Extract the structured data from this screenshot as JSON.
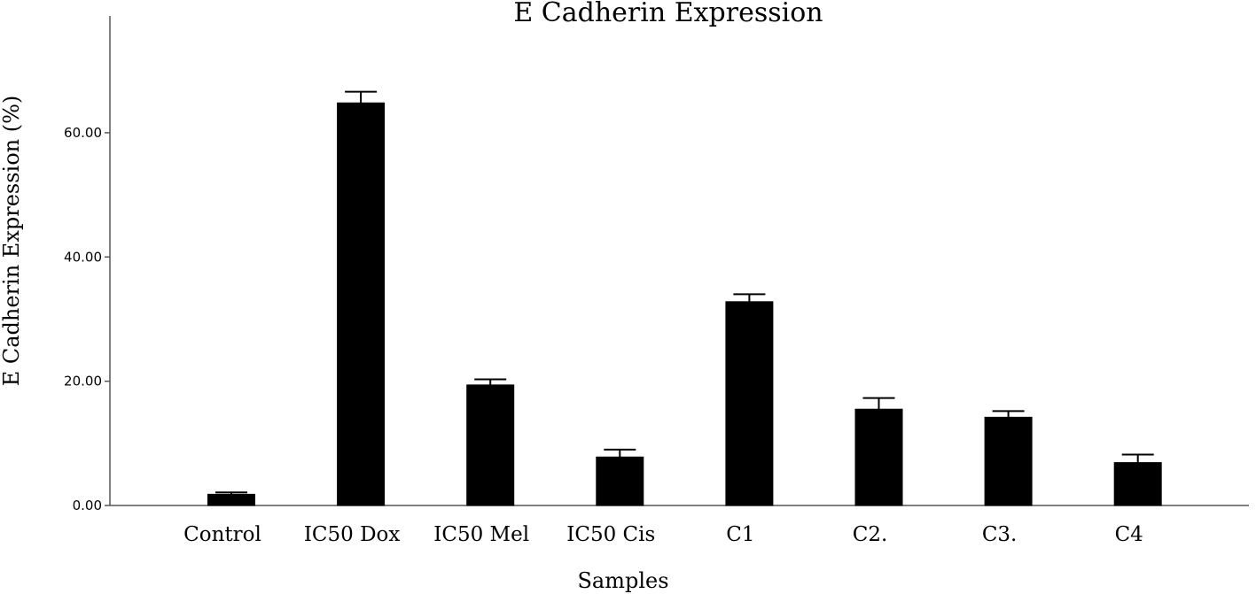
{
  "chart_data": {
    "type": "bar",
    "title": "E Cadherin Expression",
    "xlabel": "Samples",
    "ylabel": "E Cadherin Expression (%)",
    "categories": [
      "Control",
      "IC50 Dox",
      "IC50 Mel",
      "IC50 Cis",
      "C1",
      "C2.",
      "C3.",
      "C4"
    ],
    "values": [
      1.8,
      64.8,
      19.4,
      7.8,
      32.8,
      15.5,
      14.2,
      6.9
    ],
    "error_upper": [
      2.1,
      66.6,
      20.3,
      9.0,
      34.0,
      17.3,
      15.2,
      8.2
    ],
    "ylim": [
      0,
      78.8
    ],
    "yticks": [
      0,
      20,
      40,
      60
    ],
    "ytick_labels": [
      "0.00",
      "20.00",
      "40.00",
      "60.00"
    ],
    "grid": false,
    "bar_color": "#000000"
  }
}
